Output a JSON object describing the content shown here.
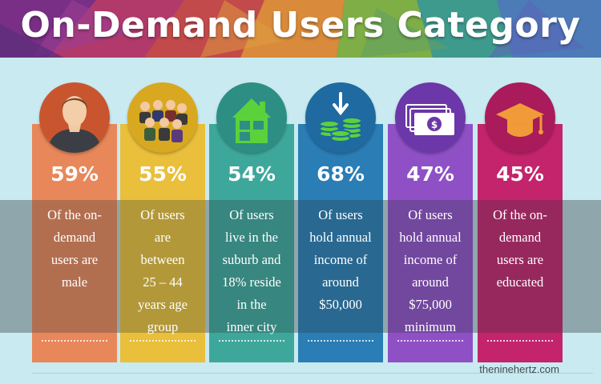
{
  "title": "On-Demand Users Category",
  "cards": [
    {
      "percent": "59%",
      "lines": [
        "Of the on-",
        "demand",
        "users are",
        "male"
      ],
      "color": "#e8875a",
      "icon": "user-icon"
    },
    {
      "percent": "55%",
      "lines": [
        "Of users",
        "are",
        "between",
        "25 – 44",
        "years age",
        "group"
      ],
      "color": "#e9bf3b",
      "icon": "group-icon"
    },
    {
      "percent": "54%",
      "lines": [
        "Of users",
        "live in the",
        "suburb and",
        "18% reside",
        "in the",
        "inner city"
      ],
      "color": "#3ea79b",
      "icon": "house-icon"
    },
    {
      "percent": "68%",
      "lines": [
        "Of users",
        "hold annual",
        "income of",
        "around",
        "$50,000"
      ],
      "color": "#2a7db5",
      "icon": "coins-icon"
    },
    {
      "percent": "47%",
      "lines": [
        "Of users",
        "hold annual",
        "income of",
        "around",
        "$75,000",
        "minimum"
      ],
      "color": "#8f50c6",
      "icon": "cash-icon"
    },
    {
      "percent": "45%",
      "lines": [
        "Of the on-",
        "demand",
        "users are",
        "educated"
      ],
      "color": "#c3246c",
      "icon": "graduation-cap-icon"
    }
  ],
  "credit": "theninehertz.com"
}
